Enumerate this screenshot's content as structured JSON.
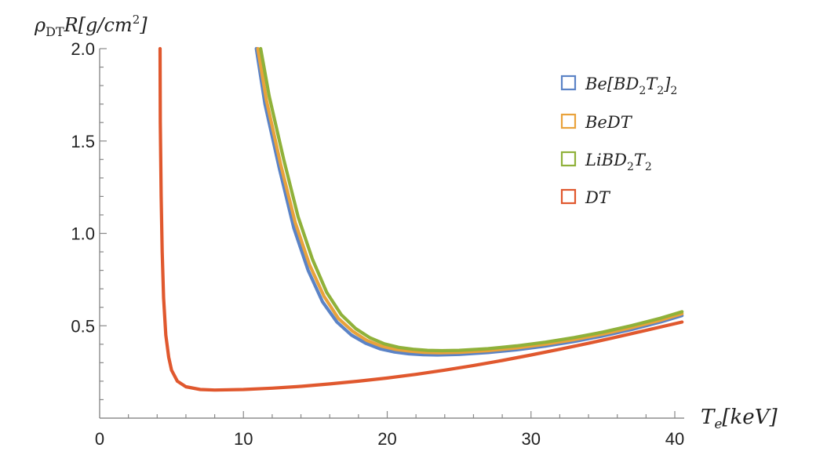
{
  "chart_data": {
    "type": "line",
    "y_axis_title_parts": {
      "rho": "ρ",
      "sub": "DT",
      "rest": "R[g/cm",
      "exp": "2",
      "close": "]"
    },
    "x_axis_title_parts": {
      "T": "T",
      "sub": "e",
      "rest": "[keV]"
    },
    "xlim": [
      0,
      40.5
    ],
    "ylim": [
      0,
      2.0
    ],
    "x_ticks": [
      0,
      10,
      20,
      30,
      40
    ],
    "x_tick_labels": [
      "0",
      "10",
      "20",
      "30",
      "40"
    ],
    "y_ticks": [
      0.5,
      1.0,
      1.5,
      2.0
    ],
    "y_tick_labels": [
      "0.5",
      "1.0",
      "1.5",
      "2.0"
    ],
    "grid": false,
    "legend_position": "top-right",
    "series": [
      {
        "name": "Be[BD2T2]2",
        "label_parts": {
          "a": "Be[BD",
          "s1": "2",
          "b": "T",
          "s2": "2",
          "c": "]",
          "s3": "2"
        },
        "color": "#5b83c6",
        "points": [
          [
            10.9,
            2.0
          ],
          [
            11.5,
            1.7
          ],
          [
            12.5,
            1.35
          ],
          [
            13.5,
            1.03
          ],
          [
            14.5,
            0.8
          ],
          [
            15.5,
            0.63
          ],
          [
            16.5,
            0.52
          ],
          [
            17.5,
            0.45
          ],
          [
            18.5,
            0.405
          ],
          [
            19.5,
            0.375
          ],
          [
            20.5,
            0.358
          ],
          [
            21.5,
            0.348
          ],
          [
            22.5,
            0.343
          ],
          [
            23.5,
            0.342
          ],
          [
            25,
            0.345
          ],
          [
            27,
            0.355
          ],
          [
            29,
            0.37
          ],
          [
            31,
            0.39
          ],
          [
            33,
            0.415
          ],
          [
            35,
            0.445
          ],
          [
            37,
            0.48
          ],
          [
            39,
            0.52
          ],
          [
            40.5,
            0.555
          ]
        ]
      },
      {
        "name": "BeDT",
        "label_parts": {
          "a": "BeDT"
        },
        "color": "#e9a23b",
        "points": [
          [
            11.0,
            2.0
          ],
          [
            11.6,
            1.72
          ],
          [
            12.6,
            1.37
          ],
          [
            13.6,
            1.06
          ],
          [
            14.6,
            0.83
          ],
          [
            15.6,
            0.66
          ],
          [
            16.6,
            0.54
          ],
          [
            17.6,
            0.47
          ],
          [
            18.6,
            0.42
          ],
          [
            19.6,
            0.39
          ],
          [
            20.6,
            0.372
          ],
          [
            21.6,
            0.362
          ],
          [
            22.6,
            0.356
          ],
          [
            23.6,
            0.354
          ],
          [
            25,
            0.356
          ],
          [
            27,
            0.365
          ],
          [
            29,
            0.38
          ],
          [
            31,
            0.4
          ],
          [
            33,
            0.425
          ],
          [
            35,
            0.455
          ],
          [
            37,
            0.49
          ],
          [
            39,
            0.53
          ],
          [
            40.5,
            0.565
          ]
        ]
      },
      {
        "name": "LiBD2T2",
        "label_parts": {
          "a": "LiBD",
          "s1": "2",
          "b": "T",
          "s2": "2"
        },
        "color": "#8fb13a",
        "points": [
          [
            11.2,
            2.0
          ],
          [
            11.8,
            1.74
          ],
          [
            12.8,
            1.4
          ],
          [
            13.8,
            1.09
          ],
          [
            14.8,
            0.86
          ],
          [
            15.8,
            0.68
          ],
          [
            16.8,
            0.56
          ],
          [
            17.8,
            0.485
          ],
          [
            18.8,
            0.435
          ],
          [
            19.8,
            0.402
          ],
          [
            20.8,
            0.383
          ],
          [
            21.8,
            0.373
          ],
          [
            22.8,
            0.367
          ],
          [
            23.8,
            0.365
          ],
          [
            25,
            0.367
          ],
          [
            27,
            0.376
          ],
          [
            29,
            0.391
          ],
          [
            31,
            0.411
          ],
          [
            33,
            0.436
          ],
          [
            35,
            0.466
          ],
          [
            37,
            0.501
          ],
          [
            39,
            0.541
          ],
          [
            40.5,
            0.576
          ]
        ]
      },
      {
        "name": "DT",
        "label_parts": {
          "a": "DT"
        },
        "color": "#e0582e",
        "points": [
          [
            4.2,
            2.0
          ],
          [
            4.22,
            1.6
          ],
          [
            4.28,
            1.2
          ],
          [
            4.35,
            0.9
          ],
          [
            4.45,
            0.65
          ],
          [
            4.6,
            0.45
          ],
          [
            4.8,
            0.33
          ],
          [
            5.0,
            0.26
          ],
          [
            5.4,
            0.2
          ],
          [
            6.0,
            0.17
          ],
          [
            7.0,
            0.155
          ],
          [
            8.0,
            0.152
          ],
          [
            10,
            0.155
          ],
          [
            12,
            0.162
          ],
          [
            14,
            0.172
          ],
          [
            16,
            0.185
          ],
          [
            18,
            0.2
          ],
          [
            20,
            0.217
          ],
          [
            22,
            0.237
          ],
          [
            24,
            0.26
          ],
          [
            26,
            0.285
          ],
          [
            28,
            0.312
          ],
          [
            30,
            0.342
          ],
          [
            32,
            0.373
          ],
          [
            34,
            0.405
          ],
          [
            36,
            0.44
          ],
          [
            38,
            0.475
          ],
          [
            40.5,
            0.52
          ]
        ]
      }
    ]
  }
}
